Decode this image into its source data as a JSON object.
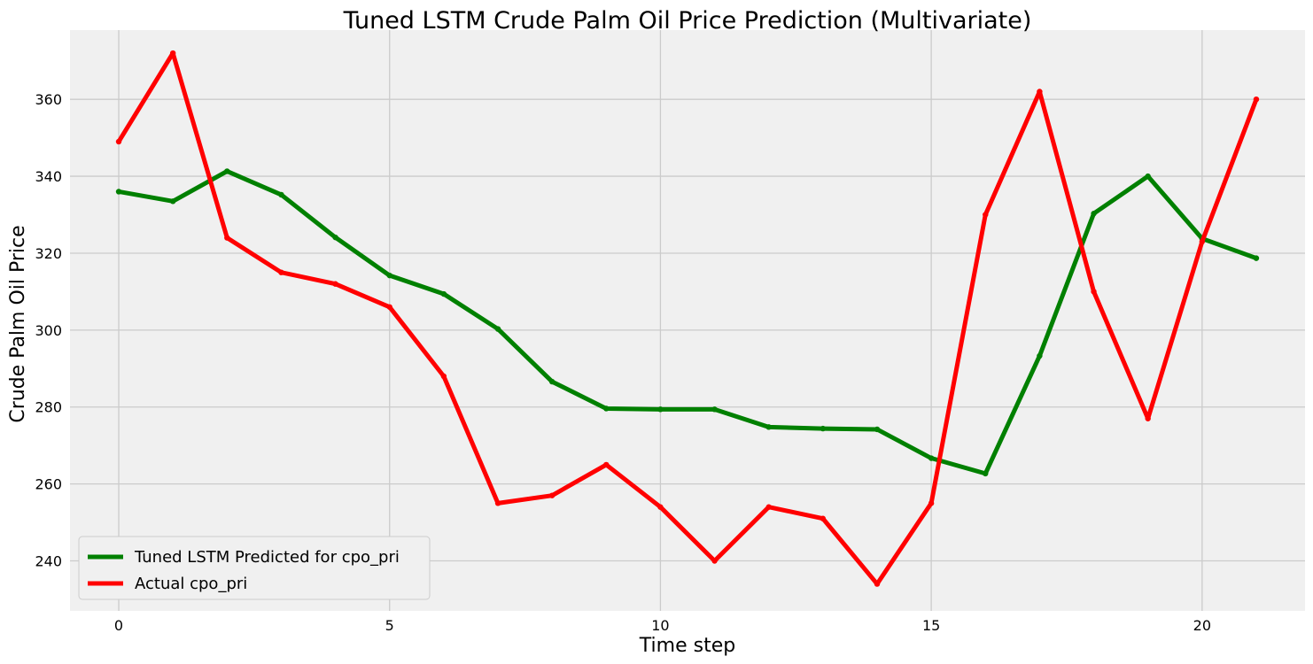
{
  "chart_data": {
    "type": "line",
    "title": "Tuned LSTM Crude Palm Oil Price Prediction (Multivariate)",
    "xlabel": "Time step",
    "ylabel": "Crude Palm Oil Price",
    "xlim": [
      -0.9,
      21.9
    ],
    "ylim": [
      227,
      378
    ],
    "xticks": [
      0,
      5,
      10,
      15,
      20
    ],
    "yticks": [
      240,
      260,
      280,
      300,
      320,
      340,
      360
    ],
    "grid": true,
    "legend_position": "lower-left",
    "x": [
      0,
      1,
      2,
      3,
      4,
      5,
      6,
      7,
      8,
      9,
      10,
      11,
      12,
      13,
      14,
      15,
      16,
      17,
      18,
      19,
      20,
      21
    ],
    "series": [
      {
        "name": "Tuned LSTM Predicted for cpo_pri",
        "color": "#008000",
        "values": [
          336,
          333.5,
          341.3,
          335.2,
          324.1,
          314.2,
          309.4,
          300.3,
          286.6,
          279.6,
          279.4,
          279.4,
          274.8,
          274.4,
          274.2,
          266.7,
          262.7,
          293.3,
          330.3,
          340,
          323.8,
          318.7
        ]
      },
      {
        "name": "Actual cpo_pri",
        "color": "#ff0000",
        "values": [
          349,
          372,
          324,
          315,
          312,
          306,
          288,
          255,
          257,
          265,
          254,
          240,
          254,
          251,
          234,
          255,
          330,
          362,
          310,
          277,
          323,
          360
        ]
      }
    ]
  }
}
